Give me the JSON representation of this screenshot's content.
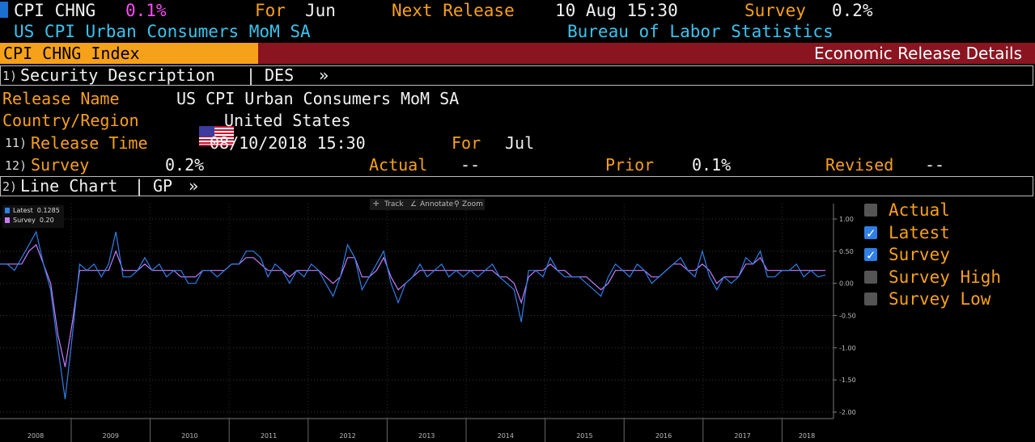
{
  "header": {
    "ticker_short": "CPI CHNG",
    "last_value": "0.1%",
    "for_label": "For",
    "for_value": "Jun",
    "next_release_label": "Next Release",
    "next_release_value": "10 Aug 15:30",
    "survey_label": "Survey",
    "survey_value": "0.2%",
    "full_name": "US CPI Urban Consumers MoM SA",
    "source": "Bureau of Labor Statistics"
  },
  "title_bar": {
    "security": "CPI CHNG Index",
    "function_title": "Economic Release Details"
  },
  "description_section": {
    "num": "1)",
    "title": "Security Description",
    "sep": "|",
    "code": "DES",
    "arrow": "»"
  },
  "details": {
    "release_name_label": "Release Name",
    "release_name_value": "US CPI Urban Consumers MoM SA",
    "country_label": "Country/Region",
    "country_value": "United States",
    "release_time_num": "11)",
    "release_time_label": "Release Time",
    "release_time_value": "08/10/2018 15:30",
    "for_label": "For",
    "for_value": "Jul",
    "survey_num": "12)",
    "survey_label": "Survey",
    "survey_value": "0.2%",
    "actual_label": "Actual",
    "actual_value": "--",
    "prior_label": "Prior",
    "prior_value": "0.1%",
    "revised_label": "Revised",
    "revised_value": "--"
  },
  "chart_section": {
    "num": "2)",
    "title": "Line Chart",
    "sep": "|",
    "code": "GP",
    "arrow": "»"
  },
  "chart_toolbar": {
    "track": "Track",
    "annotate": "Annotate",
    "zoom": "Zoom"
  },
  "chart_inset_legend": {
    "latest": "Latest  0.1285",
    "survey": "Survey  0.20"
  },
  "legend": [
    {
      "label": "Actual",
      "checked": false
    },
    {
      "label": "Latest",
      "checked": true
    },
    {
      "label": "Survey",
      "checked": true
    },
    {
      "label": "Survey High",
      "checked": false
    },
    {
      "label": "Survey Low",
      "checked": false
    }
  ],
  "colors": {
    "orange": "#f6a11a",
    "cyan": "#3cc3ee",
    "magenta": "#ff4cf6",
    "title_bar_red": "#8a1420",
    "latest_line": "#2f7fe6",
    "survey_line": "#c77dff"
  },
  "chart_data": {
    "type": "line",
    "x_labels": [
      "2008",
      "2009",
      "2010",
      "2011",
      "2012",
      "2013",
      "2014",
      "2015",
      "2016",
      "2017",
      "2018"
    ],
    "y_ticks": [
      "1.00",
      "0.50",
      "0.00",
      "-0.50",
      "-1.00",
      "-1.50",
      "-2.00"
    ],
    "ylim": [
      -2.0,
      1.0
    ],
    "grid": true,
    "series": [
      {
        "name": "Latest",
        "color": "#2f7fe6",
        "values": [
          0.3,
          0.3,
          0.2,
          0.4,
          0.6,
          0.8,
          0.3,
          -0.1,
          -1.0,
          -1.8,
          -0.8,
          0.3,
          0.2,
          0.3,
          0.1,
          0.3,
          0.8,
          0.1,
          0.1,
          0.2,
          0.4,
          0.2,
          0.3,
          0.1,
          0.2,
          0.2,
          0.0,
          0.0,
          0.2,
          0.2,
          0.1,
          0.2,
          0.3,
          0.3,
          0.5,
          0.5,
          0.4,
          0.1,
          0.3,
          0.2,
          0.0,
          0.2,
          0.1,
          0.3,
          0.2,
          0.0,
          -0.2,
          0.1,
          0.6,
          0.4,
          -0.1,
          0.1,
          0.3,
          0.5,
          0.0,
          -0.3,
          0.0,
          0.1,
          0.3,
          0.1,
          0.2,
          0.3,
          0.1,
          0.2,
          0.1,
          0.2,
          0.1,
          0.2,
          0.3,
          0.1,
          0.0,
          -0.1,
          -0.6,
          0.2,
          0.2,
          0.1,
          0.4,
          0.2,
          0.1,
          0.1,
          0.1,
          0.0,
          -0.1,
          -0.2,
          0.1,
          0.3,
          0.2,
          0.1,
          0.3,
          0.2,
          0.0,
          0.1,
          0.2,
          0.3,
          0.4,
          0.2,
          0.1,
          0.5,
          0.1,
          -0.1,
          0.1,
          0.0,
          0.1,
          0.4,
          0.3,
          0.5,
          0.1,
          0.1,
          0.2,
          0.2,
          0.3,
          0.1,
          0.2,
          0.1,
          0.13
        ]
      },
      {
        "name": "Survey",
        "color": "#c77dff",
        "values": [
          0.3,
          0.3,
          0.3,
          0.3,
          0.5,
          0.6,
          0.3,
          0.0,
          -0.8,
          -1.3,
          -0.6,
          0.2,
          0.2,
          0.2,
          0.2,
          0.2,
          0.5,
          0.2,
          0.2,
          0.2,
          0.3,
          0.2,
          0.2,
          0.2,
          0.2,
          0.1,
          0.1,
          0.1,
          0.2,
          0.2,
          0.2,
          0.2,
          0.3,
          0.3,
          0.4,
          0.4,
          0.3,
          0.2,
          0.2,
          0.2,
          0.1,
          0.2,
          0.2,
          0.2,
          0.2,
          0.1,
          0.0,
          0.1,
          0.4,
          0.4,
          0.1,
          0.1,
          0.2,
          0.4,
          0.1,
          -0.1,
          0.0,
          0.1,
          0.2,
          0.2,
          0.2,
          0.2,
          0.2,
          0.2,
          0.2,
          0.2,
          0.2,
          0.2,
          0.2,
          0.1,
          0.1,
          0.0,
          -0.3,
          0.1,
          0.2,
          0.2,
          0.3,
          0.2,
          0.2,
          0.1,
          0.1,
          0.1,
          0.0,
          -0.1,
          0.0,
          0.2,
          0.2,
          0.2,
          0.2,
          0.2,
          0.1,
          0.1,
          0.2,
          0.3,
          0.3,
          0.2,
          0.2,
          0.3,
          0.2,
          0.0,
          0.1,
          0.1,
          0.1,
          0.3,
          0.3,
          0.4,
          0.2,
          0.2,
          0.2,
          0.2,
          0.2,
          0.2,
          0.2,
          0.2,
          0.2
        ]
      }
    ]
  }
}
